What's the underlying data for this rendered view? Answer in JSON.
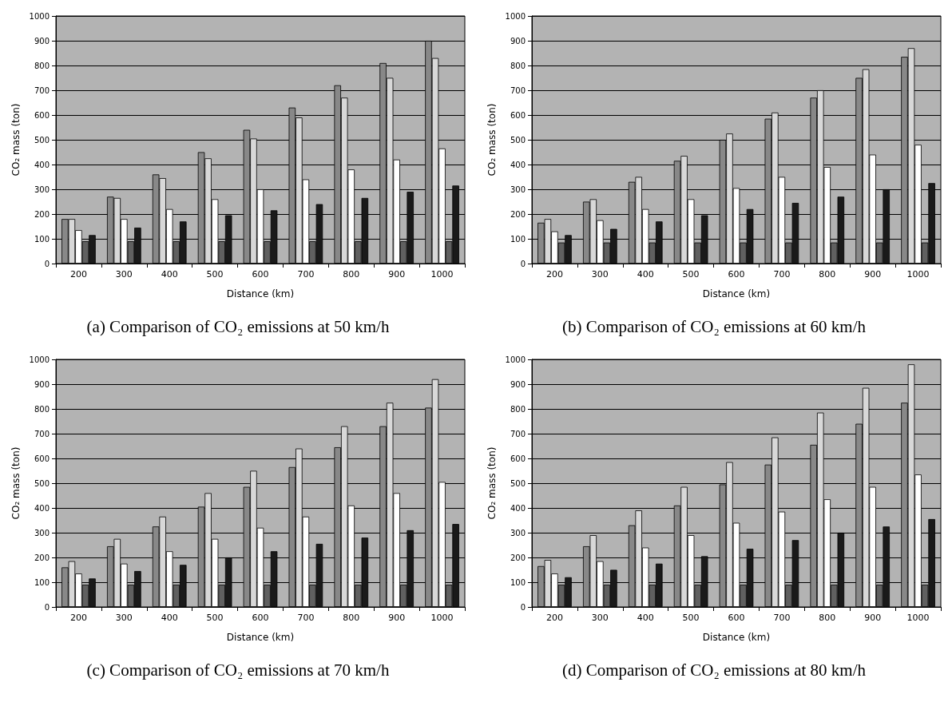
{
  "chart_data": [
    {
      "type": "bar",
      "title": "(a) Comparison of CO₂ emissions at 50 km/h",
      "xlabel": "Distance (km)",
      "ylabel": "CO₂ mass (ton)",
      "categories": [
        "200",
        "300",
        "400",
        "500",
        "600",
        "700",
        "800",
        "900",
        "1000"
      ],
      "ylim": [
        0,
        1000
      ],
      "yticks": [
        0,
        100,
        200,
        300,
        400,
        500,
        600,
        700,
        800,
        900,
        1000
      ],
      "grid": "y",
      "series": [
        {
          "color": "#888888",
          "values": [
            180,
            270,
            360,
            450,
            540,
            630,
            720,
            810,
            900
          ]
        },
        {
          "color": "#d8d8d8",
          "values": [
            180,
            265,
            345,
            425,
            505,
            590,
            670,
            750,
            830
          ]
        },
        {
          "color": "#ffffff",
          "values": [
            135,
            180,
            220,
            260,
            300,
            340,
            380,
            420,
            465
          ]
        },
        {
          "color": "#606060",
          "values": [
            90,
            90,
            90,
            90,
            90,
            90,
            90,
            90,
            90
          ]
        },
        {
          "color": "#1a1a1a",
          "values": [
            115,
            145,
            170,
            195,
            215,
            240,
            265,
            290,
            315
          ]
        }
      ]
    },
    {
      "type": "bar",
      "title": "(b) Comparison of CO₂ emissions at 60 km/h",
      "xlabel": "Distance (km)",
      "ylabel": "CO₂ mass (ton)",
      "categories": [
        "200",
        "300",
        "400",
        "500",
        "600",
        "700",
        "800",
        "900",
        "1000"
      ],
      "ylim": [
        0,
        1000
      ],
      "yticks": [
        0,
        100,
        200,
        300,
        400,
        500,
        600,
        700,
        800,
        900,
        1000
      ],
      "grid": "y",
      "series": [
        {
          "color": "#888888",
          "values": [
            165,
            250,
            330,
            415,
            500,
            585,
            670,
            750,
            835
          ]
        },
        {
          "color": "#d8d8d8",
          "values": [
            180,
            260,
            350,
            435,
            525,
            610,
            700,
            785,
            870
          ]
        },
        {
          "color": "#ffffff",
          "values": [
            130,
            175,
            220,
            260,
            305,
            350,
            390,
            440,
            480
          ]
        },
        {
          "color": "#606060",
          "values": [
            85,
            85,
            85,
            85,
            85,
            85,
            85,
            85,
            85
          ]
        },
        {
          "color": "#1a1a1a",
          "values": [
            115,
            140,
            170,
            195,
            220,
            245,
            270,
            300,
            325
          ]
        }
      ]
    },
    {
      "type": "bar",
      "title": "(c) Comparison of CO₂ emissions at 70 km/h",
      "xlabel": "Distance (km)",
      "ylabel": "CO₂ mass (ton)",
      "categories": [
        "200",
        "300",
        "400",
        "500",
        "600",
        "700",
        "800",
        "900",
        "1000"
      ],
      "ylim": [
        0,
        1000
      ],
      "yticks": [
        0,
        100,
        200,
        300,
        400,
        500,
        600,
        700,
        800,
        900,
        1000
      ],
      "grid": "y",
      "series": [
        {
          "color": "#888888",
          "values": [
            160,
            245,
            325,
            405,
            485,
            565,
            645,
            730,
            805
          ]
        },
        {
          "color": "#d8d8d8",
          "values": [
            185,
            275,
            365,
            460,
            550,
            640,
            730,
            825,
            920
          ]
        },
        {
          "color": "#ffffff",
          "values": [
            135,
            175,
            225,
            275,
            320,
            365,
            410,
            460,
            505
          ]
        },
        {
          "color": "#606060",
          "values": [
            90,
            90,
            90,
            90,
            90,
            90,
            90,
            90,
            90
          ]
        },
        {
          "color": "#1a1a1a",
          "values": [
            115,
            145,
            170,
            200,
            225,
            255,
            280,
            310,
            335
          ]
        }
      ]
    },
    {
      "type": "bar",
      "title": "(d) Comparison of CO₂ emissions at 80 km/h",
      "xlabel": "Distance (km)",
      "ylabel": "CO₂ mass (ton)",
      "categories": [
        "200",
        "300",
        "400",
        "500",
        "600",
        "700",
        "800",
        "900",
        "1000"
      ],
      "ylim": [
        0,
        1000
      ],
      "yticks": [
        0,
        100,
        200,
        300,
        400,
        500,
        600,
        700,
        800,
        900,
        1000
      ],
      "grid": "y",
      "series": [
        {
          "color": "#888888",
          "values": [
            165,
            245,
            330,
            410,
            495,
            575,
            655,
            740,
            825
          ]
        },
        {
          "color": "#d8d8d8",
          "values": [
            190,
            290,
            390,
            485,
            585,
            685,
            785,
            885,
            980
          ]
        },
        {
          "color": "#ffffff",
          "values": [
            135,
            185,
            240,
            290,
            340,
            385,
            435,
            485,
            535
          ]
        },
        {
          "color": "#606060",
          "values": [
            90,
            90,
            90,
            90,
            90,
            90,
            90,
            90,
            90
          ]
        },
        {
          "color": "#1a1a1a",
          "values": [
            120,
            150,
            175,
            205,
            235,
            270,
            300,
            325,
            355
          ]
        }
      ]
    }
  ]
}
